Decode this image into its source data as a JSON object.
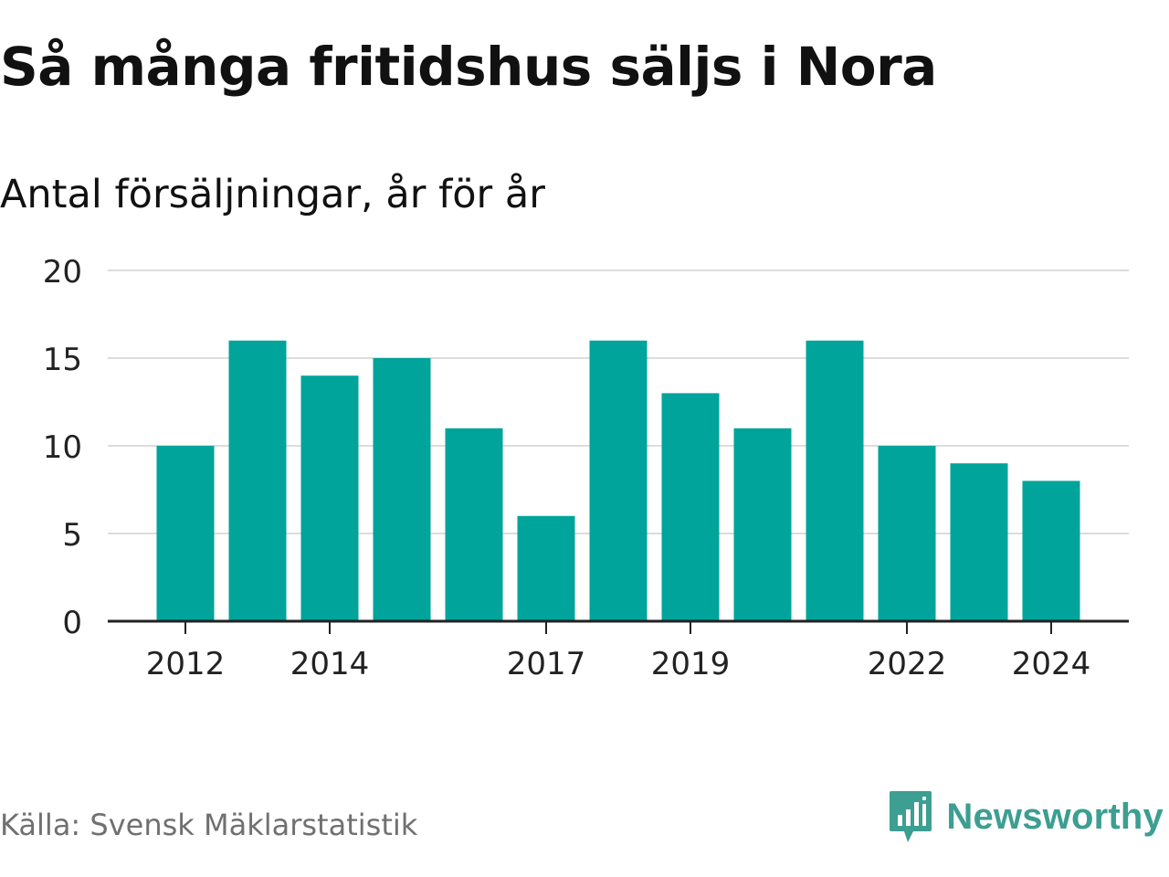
{
  "title": "Så många fritidshus säljs i Nora",
  "subtitle": "Antal försäljningar, år för år",
  "source": "Källa: Svensk Mäklarstatistik",
  "brand": {
    "name": "Newsworthy",
    "icon": "newsworthy-logo-icon",
    "color": "#3d9e92"
  },
  "colors": {
    "bar": "#00a49a",
    "grid": "#dcdcdc",
    "axis": "#222222",
    "text": "#222222"
  },
  "chart_data": {
    "type": "bar",
    "categories": [
      "2012",
      "2013",
      "2014",
      "2015",
      "2016",
      "2017",
      "2018",
      "2019",
      "2020",
      "2021",
      "2022",
      "2023",
      "2024"
    ],
    "values": [
      10,
      16,
      14,
      15,
      11,
      6,
      16,
      13,
      11,
      16,
      10,
      9,
      8
    ],
    "x_tick_labels": [
      "2012",
      "2014",
      "2017",
      "2019",
      "2022",
      "2024"
    ],
    "y_ticks": [
      0,
      5,
      10,
      15,
      20
    ],
    "ylim": [
      0,
      20
    ],
    "grid": true,
    "title": "Så många fritidshus säljs i Nora",
    "subtitle": "Antal försäljningar, år för år",
    "xlabel": "",
    "ylabel": ""
  }
}
